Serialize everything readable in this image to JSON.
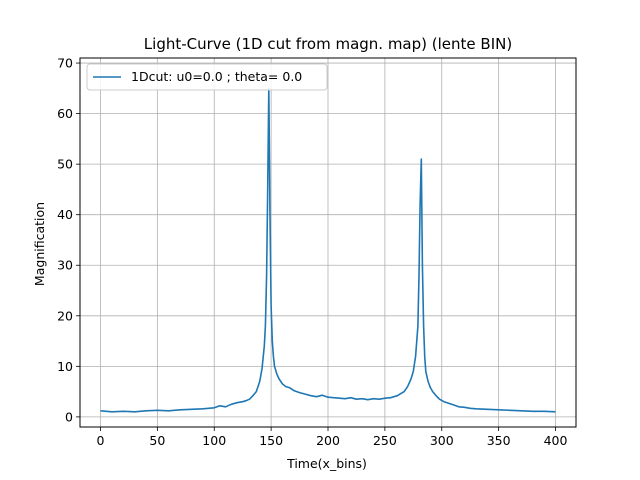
{
  "chart_data": {
    "type": "line",
    "title": "Light-Curve (1D cut from magn. map) (lente BIN)",
    "xlabel": "Time(x_bins)",
    "ylabel": "Magnification",
    "xlim": [
      -18,
      418
    ],
    "ylim": [
      -2,
      71
    ],
    "xticks": [
      0,
      50,
      100,
      150,
      200,
      250,
      300,
      350,
      400
    ],
    "yticks": [
      0,
      10,
      20,
      30,
      40,
      50,
      60,
      70
    ],
    "xtick_labels": [
      "0",
      "50",
      "100",
      "150",
      "200",
      "250",
      "300",
      "350",
      "400"
    ],
    "ytick_labels": [
      "0",
      "10",
      "20",
      "30",
      "40",
      "50",
      "60",
      "70"
    ],
    "grid": true,
    "legend_position": "upper-left",
    "series": [
      {
        "name": "1Dcut: u0=0.0 ; theta= 0.0",
        "color": "#1f77b4",
        "x": [
          0,
          10,
          20,
          30,
          40,
          50,
          60,
          70,
          80,
          90,
          100,
          105,
          110,
          115,
          120,
          125,
          128,
          131,
          134,
          137,
          140,
          142,
          144,
          145,
          146,
          147,
          148,
          149,
          150,
          151,
          152,
          153,
          155,
          157,
          160,
          163,
          166,
          170,
          175,
          180,
          185,
          190,
          195,
          200,
          205,
          210,
          215,
          220,
          225,
          230,
          235,
          240,
          245,
          250,
          255,
          258,
          261,
          264,
          267,
          270,
          273,
          275,
          277,
          279,
          280,
          281,
          282,
          283,
          284,
          285,
          286,
          288,
          290,
          292,
          295,
          298,
          302,
          306,
          310,
          315,
          320,
          325,
          330,
          340,
          350,
          360,
          370,
          380,
          390,
          400
        ],
        "y": [
          1.2,
          1.0,
          1.1,
          1.0,
          1.2,
          1.3,
          1.2,
          1.4,
          1.5,
          1.6,
          1.8,
          2.2,
          2.0,
          2.5,
          2.8,
          3.0,
          3.2,
          3.5,
          4.2,
          5.0,
          7.0,
          9.5,
          14.0,
          18.0,
          28.0,
          45.0,
          65.0,
          40.0,
          22.0,
          15.0,
          12.0,
          10.0,
          8.5,
          7.5,
          6.5,
          6.0,
          5.8,
          5.2,
          4.8,
          4.5,
          4.2,
          4.0,
          4.3,
          3.9,
          3.8,
          3.7,
          3.6,
          3.8,
          3.5,
          3.6,
          3.4,
          3.6,
          3.5,
          3.7,
          3.8,
          4.0,
          4.2,
          4.6,
          5.0,
          6.0,
          7.5,
          9.0,
          12.0,
          18.0,
          28.0,
          42.0,
          51.0,
          30.0,
          18.0,
          12.0,
          9.0,
          7.0,
          5.8,
          5.0,
          4.2,
          3.5,
          3.0,
          2.7,
          2.4,
          2.0,
          1.9,
          1.7,
          1.6,
          1.5,
          1.4,
          1.3,
          1.2,
          1.1,
          1.1,
          1.0
        ]
      }
    ]
  }
}
